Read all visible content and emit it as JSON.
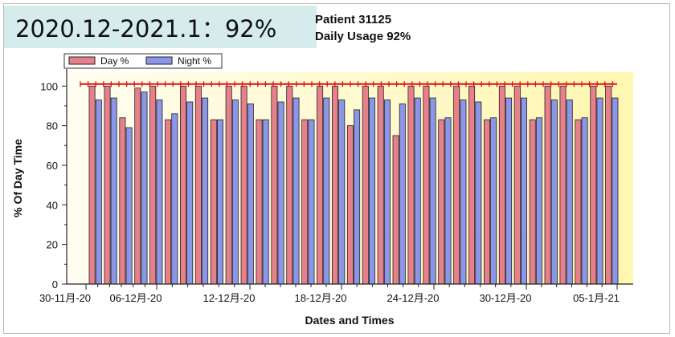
{
  "banner": {
    "text": "2020.12-2021.1：92%"
  },
  "header": {
    "title_line1": "Patient 31125",
    "title_line2": "Daily Usage 92%"
  },
  "colors": {
    "day": "#e8808c",
    "night": "#8c96e8",
    "target_line": "#dd1111",
    "plot_bg_left": "#fffdf0",
    "plot_bg_right": "#fff6b0"
  },
  "chart_data": {
    "type": "bar",
    "title": "Patient 31125 Daily Usage 92%",
    "xlabel": "Dates and Times",
    "ylabel": "% Of Day Time",
    "ylim": [
      0,
      107
    ],
    "y_ticks": [
      0,
      20,
      40,
      60,
      80,
      100
    ],
    "x_tick_labels": [
      "30-11月-20",
      "06-12月-20",
      "12-12月-20",
      "18-12月-20",
      "24-12月-20",
      "30-12月-20",
      "05-1月-21"
    ],
    "legend": {
      "placement": "top-left",
      "entries": [
        "Day %",
        "Night %"
      ]
    },
    "grid": false,
    "target_line": 101,
    "categories": [
      "01-12",
      "02-12",
      "03-12",
      "04-12",
      "05-12",
      "06-12",
      "07-12",
      "08-12",
      "09-12",
      "10-12",
      "11-12",
      "12-12",
      "13-12",
      "14-12",
      "15-12",
      "16-12",
      "17-12",
      "18-12",
      "19-12",
      "20-12",
      "21-12",
      "22-12",
      "23-12",
      "24-12",
      "25-12",
      "26-12",
      "27-12",
      "28-12",
      "29-12",
      "30-12",
      "31-12",
      "01-01",
      "02-01",
      "03-01",
      "04-01"
    ],
    "series": [
      {
        "name": "Day %",
        "values": [
          100,
          100,
          84,
          99,
          100,
          83,
          100,
          100,
          83,
          100,
          100,
          83,
          100,
          100,
          83,
          100,
          100,
          80,
          100,
          100,
          75,
          100,
          100,
          83,
          100,
          100,
          83,
          100,
          100,
          83,
          100,
          100,
          83,
          100,
          100
        ]
      },
      {
        "name": "Night %",
        "values": [
          93,
          94,
          79,
          97,
          93,
          86,
          92,
          94,
          83,
          93,
          91,
          83,
          92,
          94,
          83,
          94,
          93,
          88,
          94,
          93,
          91,
          94,
          94,
          84,
          93,
          92,
          84,
          94,
          94,
          84,
          93,
          93,
          84,
          94,
          94
        ]
      }
    ]
  }
}
